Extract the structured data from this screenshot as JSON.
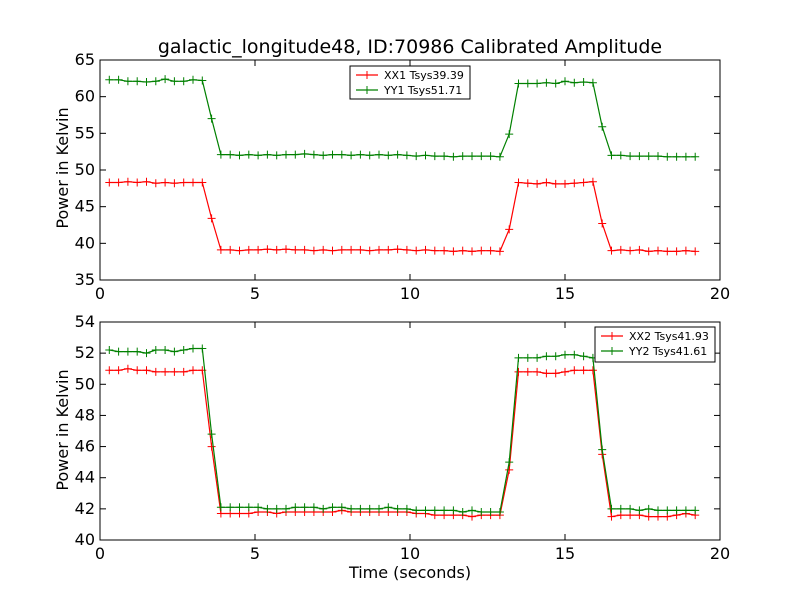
{
  "title": "galactic_longitude48, ID:70986 Calibrated Amplitude",
  "colors": {
    "xx": "#ff0000",
    "yy": "#008000",
    "axes": "#000000",
    "background": "#ffffff"
  },
  "chart_data": [
    {
      "type": "line",
      "title": "galactic_longitude48, ID:70986 Calibrated Amplitude",
      "xlabel": "",
      "ylabel": "Power in Kelvin",
      "xlim": [
        0,
        20
      ],
      "ylim": [
        35,
        65
      ],
      "xticks": [
        "0",
        "5",
        "10",
        "15",
        "20"
      ],
      "yticks": [
        "35",
        "40",
        "45",
        "50",
        "55",
        "60",
        "65"
      ],
      "grid": false,
      "legend_position": "upper center",
      "marker": "+",
      "x": [
        0.3,
        0.6,
        0.9,
        1.2,
        1.5,
        1.8,
        2.1,
        2.4,
        2.7,
        3.0,
        3.3,
        3.6,
        3.9,
        4.2,
        4.5,
        4.8,
        5.1,
        5.4,
        5.7,
        6.0,
        6.3,
        6.6,
        6.9,
        7.2,
        7.5,
        7.8,
        8.1,
        8.4,
        8.7,
        9.0,
        9.3,
        9.6,
        9.9,
        10.2,
        10.5,
        10.8,
        11.1,
        11.4,
        11.7,
        12.0,
        12.3,
        12.6,
        12.9,
        13.2,
        13.5,
        13.8,
        14.1,
        14.4,
        14.7,
        15.0,
        15.3,
        15.6,
        15.9,
        16.2,
        16.5,
        16.8,
        17.1,
        17.4,
        17.7,
        18.0,
        18.3,
        18.6,
        18.9,
        19.2
      ],
      "series": [
        {
          "name": "XX1 Tsys39.39",
          "values": [
            48.3,
            48.3,
            48.4,
            48.3,
            48.4,
            48.2,
            48.3,
            48.2,
            48.3,
            48.3,
            48.3,
            43.4,
            39.1,
            39.1,
            39.0,
            39.1,
            39.1,
            39.2,
            39.1,
            39.2,
            39.1,
            39.1,
            39.0,
            39.1,
            39.0,
            39.1,
            39.1,
            39.1,
            39.0,
            39.1,
            39.1,
            39.2,
            39.1,
            39.0,
            39.1,
            39.0,
            39.0,
            38.9,
            39.0,
            38.9,
            39.0,
            39.0,
            38.9,
            41.9,
            48.3,
            48.2,
            48.1,
            48.3,
            48.1,
            48.1,
            48.2,
            48.3,
            48.4,
            42.7,
            39.0,
            39.1,
            39.0,
            39.1,
            38.9,
            39.0,
            38.9,
            38.9,
            39.0,
            38.9
          ]
        },
        {
          "name": "YY1 Tsys51.71",
          "values": [
            62.3,
            62.3,
            62.1,
            62.1,
            62.0,
            62.1,
            62.4,
            62.1,
            62.1,
            62.3,
            62.2,
            57.0,
            52.1,
            52.1,
            52.0,
            52.1,
            52.0,
            52.1,
            52.0,
            52.1,
            52.1,
            52.2,
            52.1,
            52.0,
            52.1,
            52.1,
            52.0,
            52.1,
            52.0,
            52.1,
            52.0,
            52.1,
            52.0,
            51.9,
            52.0,
            51.9,
            51.9,
            51.8,
            51.9,
            51.9,
            51.9,
            51.9,
            51.8,
            54.9,
            61.8,
            61.8,
            61.8,
            61.9,
            61.8,
            62.1,
            61.9,
            62.0,
            61.9,
            55.9,
            52.0,
            52.0,
            51.9,
            51.9,
            51.9,
            51.9,
            51.8,
            51.8,
            51.8,
            51.8
          ]
        }
      ]
    },
    {
      "type": "line",
      "title": "",
      "xlabel": "Time (seconds)",
      "ylabel": "Power in Kelvin",
      "xlim": [
        0,
        20
      ],
      "ylim": [
        40,
        54
      ],
      "xticks": [
        "0",
        "5",
        "10",
        "15",
        "20"
      ],
      "yticks": [
        "40",
        "42",
        "44",
        "46",
        "48",
        "50",
        "52",
        "54"
      ],
      "grid": false,
      "legend_position": "upper right",
      "marker": "+",
      "x": [
        0.3,
        0.6,
        0.9,
        1.2,
        1.5,
        1.8,
        2.1,
        2.4,
        2.7,
        3.0,
        3.3,
        3.6,
        3.9,
        4.2,
        4.5,
        4.8,
        5.1,
        5.4,
        5.7,
        6.0,
        6.3,
        6.6,
        6.9,
        7.2,
        7.5,
        7.8,
        8.1,
        8.4,
        8.7,
        9.0,
        9.3,
        9.6,
        9.9,
        10.2,
        10.5,
        10.8,
        11.1,
        11.4,
        11.7,
        12.0,
        12.3,
        12.6,
        12.9,
        13.2,
        13.5,
        13.8,
        14.1,
        14.4,
        14.7,
        15.0,
        15.3,
        15.6,
        15.9,
        16.2,
        16.5,
        16.8,
        17.1,
        17.4,
        17.7,
        18.0,
        18.3,
        18.6,
        18.9,
        19.2
      ],
      "series": [
        {
          "name": "XX2 Tsys41.93",
          "values": [
            50.9,
            50.9,
            51.0,
            50.9,
            50.9,
            50.8,
            50.8,
            50.8,
            50.8,
            50.9,
            50.9,
            46.0,
            41.7,
            41.7,
            41.7,
            41.7,
            41.8,
            41.8,
            41.7,
            41.8,
            41.8,
            41.8,
            41.8,
            41.8,
            41.8,
            41.9,
            41.8,
            41.8,
            41.8,
            41.8,
            41.8,
            41.8,
            41.8,
            41.7,
            41.7,
            41.6,
            41.6,
            41.6,
            41.6,
            41.5,
            41.6,
            41.6,
            41.6,
            44.5,
            50.8,
            50.8,
            50.8,
            50.7,
            50.7,
            50.8,
            50.9,
            50.9,
            50.9,
            45.5,
            41.5,
            41.6,
            41.6,
            41.6,
            41.5,
            41.5,
            41.5,
            41.6,
            41.7,
            41.6
          ]
        },
        {
          "name": "YY2 Tsys41.61",
          "values": [
            52.2,
            52.1,
            52.1,
            52.1,
            52.0,
            52.2,
            52.2,
            52.1,
            52.2,
            52.3,
            52.3,
            46.8,
            42.1,
            42.1,
            42.1,
            42.1,
            42.1,
            42.0,
            42.0,
            42.0,
            42.1,
            42.1,
            42.1,
            42.0,
            42.1,
            42.1,
            42.0,
            42.0,
            42.0,
            42.0,
            42.1,
            42.0,
            42.0,
            41.9,
            41.9,
            41.9,
            41.9,
            41.9,
            41.8,
            41.9,
            41.8,
            41.8,
            41.8,
            45.0,
            51.7,
            51.7,
            51.7,
            51.8,
            51.8,
            51.9,
            51.9,
            51.8,
            51.7,
            45.8,
            42.0,
            42.0,
            42.0,
            41.9,
            42.0,
            41.9,
            41.9,
            41.9,
            41.9,
            41.9
          ]
        }
      ]
    }
  ]
}
